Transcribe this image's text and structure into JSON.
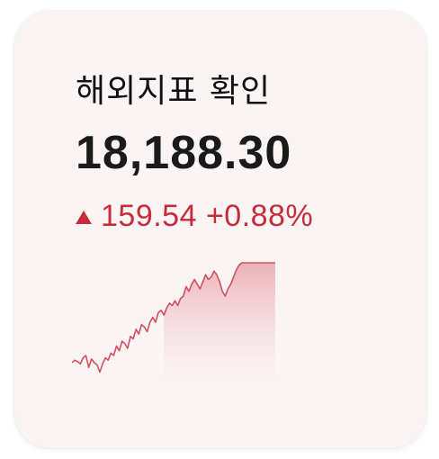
{
  "widget": {
    "title": "해외지표 확인",
    "value": "18,188.30",
    "change_icon": "up-triangle-icon",
    "change_text": "159.54 +0.88%",
    "colors": {
      "card_bg": "#faf4f5",
      "up": "#c62c3b",
      "text": "#1a1a1a"
    },
    "sparkline": [
      0.16,
      0.18,
      0.17,
      0.15,
      0.2,
      0.22,
      0.12,
      0.19,
      0.16,
      0.14,
      0.08,
      0.15,
      0.2,
      0.18,
      0.24,
      0.22,
      0.3,
      0.26,
      0.34,
      0.32,
      0.28,
      0.38,
      0.36,
      0.44,
      0.4,
      0.48,
      0.46,
      0.42,
      0.5,
      0.54,
      0.5,
      0.58,
      0.6,
      0.56,
      0.62,
      0.66,
      0.64,
      0.68,
      0.64,
      0.7,
      0.72,
      0.8,
      0.76,
      0.82,
      0.86,
      0.82,
      0.78,
      0.84,
      0.9,
      0.86,
      0.88,
      0.93,
      0.9,
      0.84,
      0.76,
      0.72,
      0.78,
      0.82,
      0.88,
      0.94,
      0.98,
      1.0,
      1.0,
      1.0,
      1.0,
      1.0,
      1.0,
      1.0,
      1.0,
      1.0,
      1.0,
      1.0,
      1.0,
      1.0
    ]
  }
}
